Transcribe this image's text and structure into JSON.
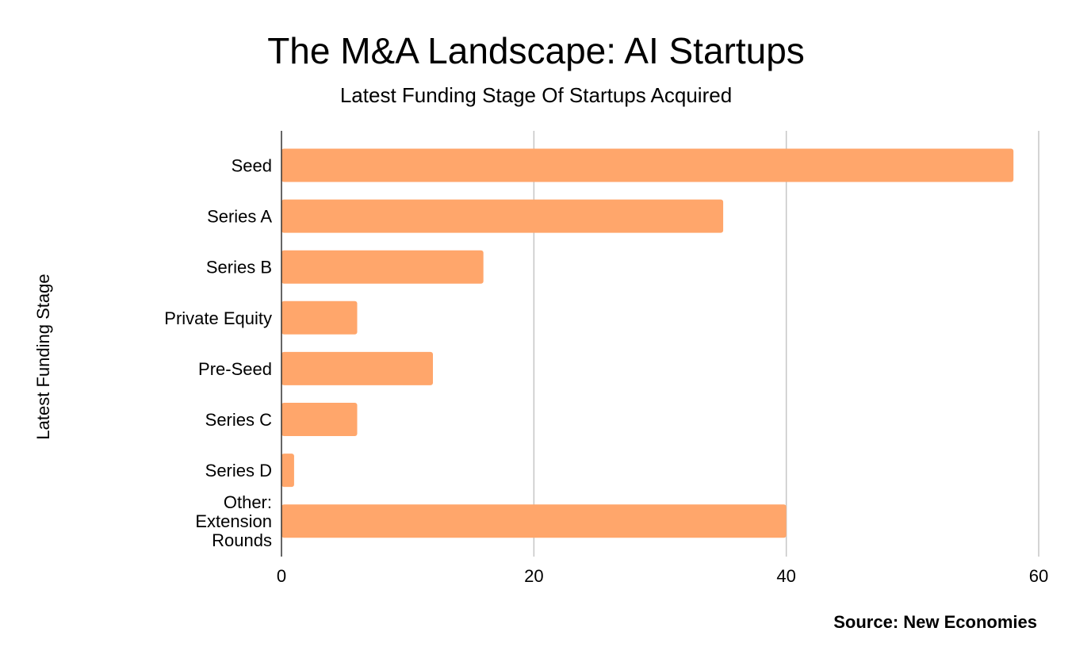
{
  "title": "The M&A Landscape: AI Startups",
  "subtitle": "Latest Funding Stage Of Startups Acquired",
  "source": "Source: New Economies",
  "colors": {
    "bar": "#ffa66b",
    "grid": "#c6c6c6",
    "axis": "#333333",
    "background": "#ffffff"
  },
  "chart_data": {
    "type": "bar",
    "orientation": "horizontal",
    "title": "The M&A Landscape: AI Startups",
    "subtitle": "Latest Funding Stage Of Startups Acquired",
    "ylabel": "Latest Funding Stage",
    "xlabel": "",
    "categories": [
      "Seed",
      "Series A",
      "Series B",
      "Private Equity",
      "Pre-Seed",
      "Series C",
      "Series D",
      "Other: Extension Rounds"
    ],
    "values": [
      58,
      35,
      16,
      6,
      12,
      6,
      1,
      40
    ],
    "xlim": [
      0,
      60
    ],
    "xticks": [
      0,
      20,
      40,
      60
    ],
    "grid": "vertical",
    "legend": "none"
  }
}
